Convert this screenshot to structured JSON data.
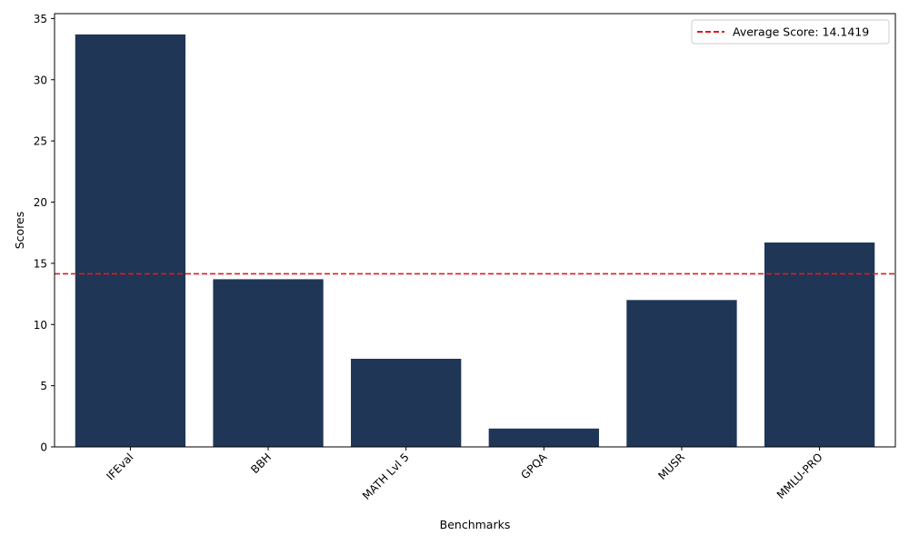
{
  "chart_data": {
    "type": "bar",
    "title": "",
    "xlabel": "Benchmarks",
    "ylabel": "Scores",
    "categories": [
      "IFEval",
      "BBH",
      "MATH Lvl 5",
      "GPQA",
      "MUSR",
      "MMLU-PRO"
    ],
    "values": [
      33.7,
      13.7,
      7.2,
      1.5,
      12.0,
      16.7
    ],
    "ylim": [
      0,
      35.4
    ],
    "yticks": [
      0,
      5,
      10,
      15,
      20,
      25,
      30,
      35
    ],
    "bar_color": "#1f3657",
    "average": {
      "value": 14.1419,
      "label": "Average Score: 14.1419",
      "color": "#e31a1c",
      "style": "dashed"
    },
    "legend_position": "top-right",
    "grid": false,
    "x_tick_rotation": 45
  }
}
